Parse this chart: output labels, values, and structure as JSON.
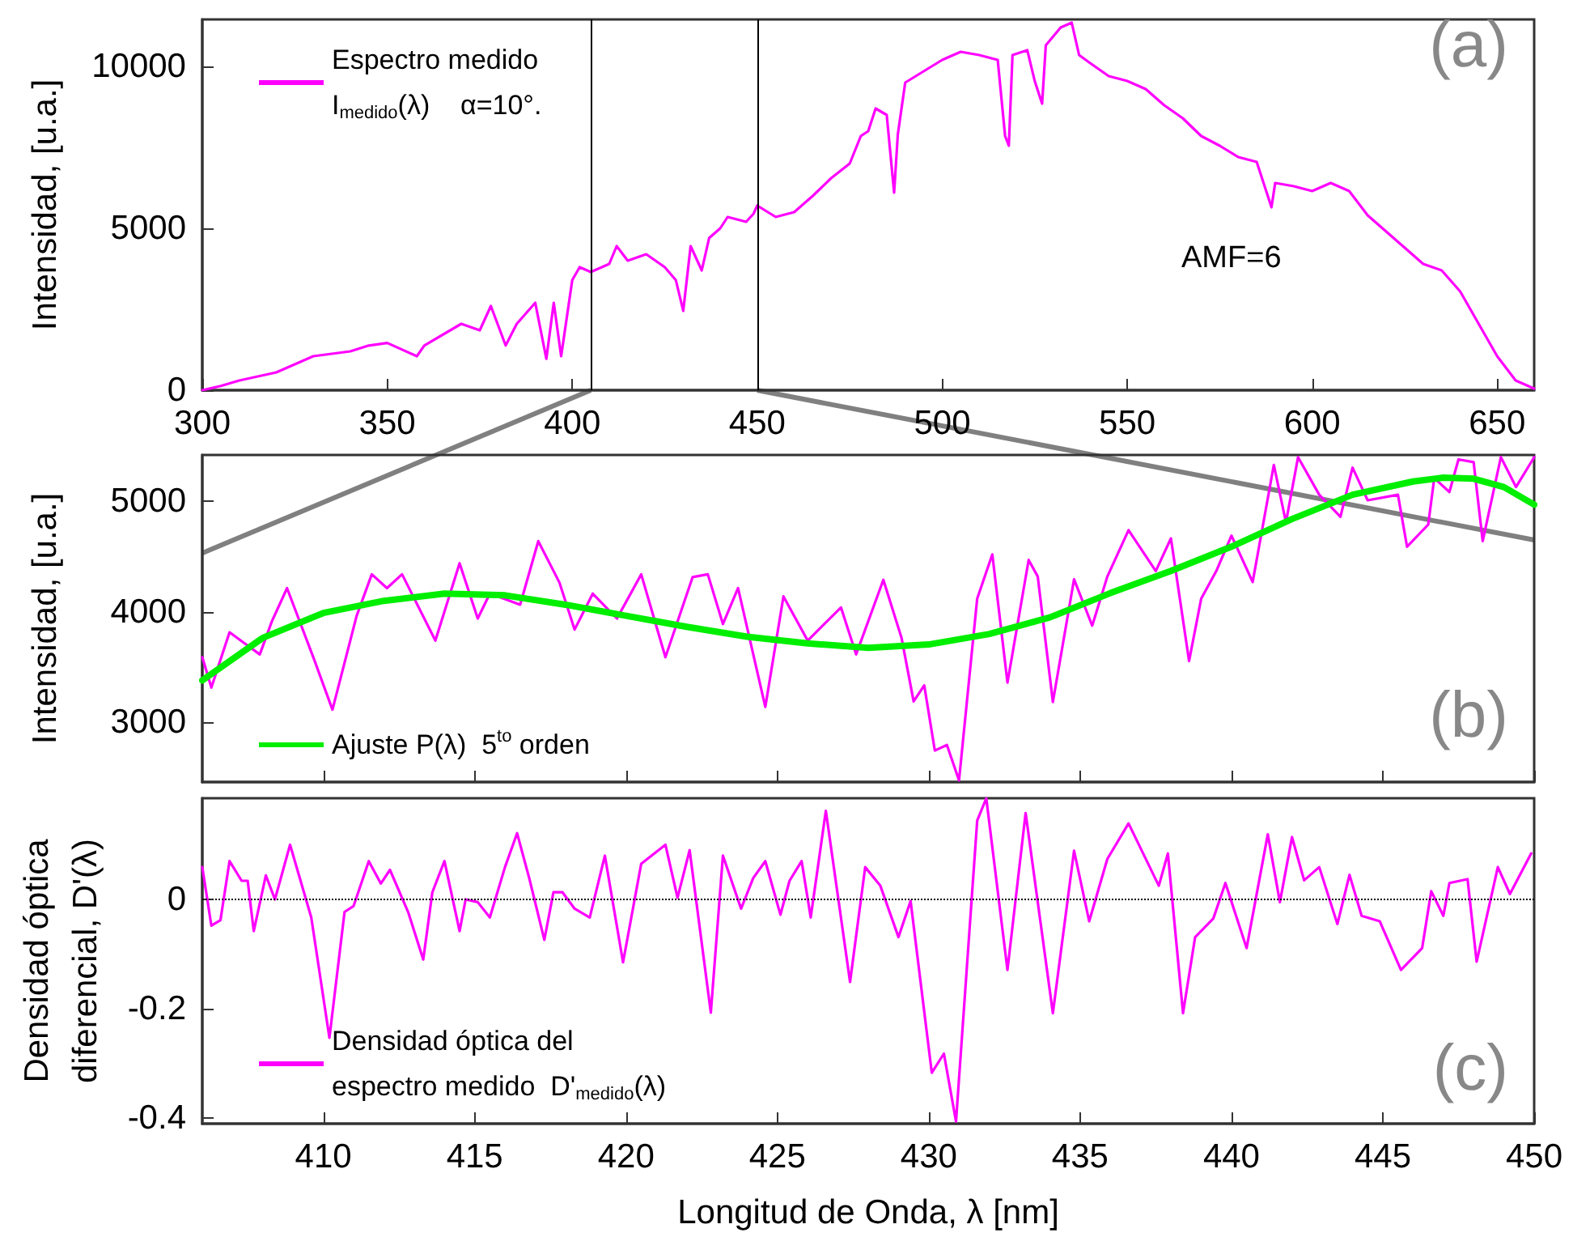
{
  "chart_data": [
    {
      "type": "line",
      "ylabel": "Intensidad, [u.a.]",
      "xlim": [
        300,
        660
      ],
      "xticks": [
        300,
        350,
        400,
        450,
        500,
        550,
        600,
        650
      ],
      "ylim": [
        0,
        11450
      ],
      "yticks": [
        0,
        5000,
        10000
      ],
      "grid": false,
      "legend": "top left",
      "marker": "none",
      "line_style": "solid",
      "annotations": [
        "(a)",
        "AMF=6"
      ],
      "ref_lines": [
        {
          "axis": "x",
          "value": 405,
          "color": "#000000"
        },
        {
          "axis": "x",
          "value": 450,
          "color": "#000000"
        }
      ],
      "series": [
        {
          "name": "Espectro medido\nI$_{medido}$(λ)    α=10°.",
          "color": "#ff00ff",
          "x": [
            300,
            305,
            310,
            320,
            330,
            340,
            345,
            350,
            358,
            360,
            370,
            375,
            378,
            382,
            385,
            390,
            393,
            395,
            397,
            400,
            402,
            405,
            410,
            412,
            415,
            420,
            425,
            428,
            430,
            432,
            435,
            437,
            440,
            442,
            447,
            449,
            450,
            455,
            460,
            465,
            470,
            475,
            478,
            480,
            482,
            485,
            487,
            488,
            490,
            495,
            500,
            505,
            510,
            515,
            517,
            518,
            519,
            523,
            525,
            527,
            528,
            532,
            535,
            537,
            540,
            545,
            550,
            555,
            560,
            565,
            570,
            575,
            580,
            585,
            589,
            590,
            595,
            600,
            605,
            610,
            615,
            620,
            625,
            630,
            635,
            640,
            645,
            650,
            655,
            660
          ],
          "values": [
            0,
            130,
            300,
            550,
            1050,
            1200,
            1380,
            1460,
            1050,
            1380,
            2050,
            1850,
            2600,
            1380,
            2050,
            2700,
            970,
            2700,
            1050,
            3400,
            3800,
            3650,
            3900,
            4450,
            4000,
            4200,
            3800,
            3400,
            2450,
            4450,
            3700,
            4700,
            5000,
            5350,
            5200,
            5450,
            5700,
            5350,
            5500,
            6000,
            6550,
            7000,
            7850,
            8000,
            8700,
            8500,
            6100,
            7900,
            9500,
            9850,
            10200,
            10450,
            10350,
            10200,
            7850,
            7550,
            10350,
            10500,
            9550,
            8850,
            10650,
            11200,
            11350,
            10350,
            10100,
            9700,
            9550,
            9300,
            8800,
            8400,
            7850,
            7550,
            7200,
            7050,
            5650,
            6400,
            6300,
            6150,
            6400,
            6150,
            5400,
            4900,
            4400,
            3900,
            3700,
            3050,
            2050,
            1050,
            300,
            50
          ]
        }
      ]
    },
    {
      "type": "line",
      "ylabel": "Intensidad, [u.a.]",
      "xlim": [
        406,
        450
      ],
      "xticks": [
        410,
        415,
        420,
        425,
        430,
        435,
        440,
        445,
        450
      ],
      "ylim": [
        2460,
        5420
      ],
      "yticks": [
        3000,
        4000,
        5000
      ],
      "tick_labels": "y",
      "grid": false,
      "legend": "bottom left",
      "marker": "none",
      "line_style": "solid",
      "annotations": [
        "(b)"
      ],
      "series": [
        {
          "color": "#ff00ff",
          "x": [
            406.0,
            406.3,
            406.9,
            407.4,
            407.9,
            408.3,
            408.8,
            409.7,
            410.3,
            411.1,
            411.6,
            412.1,
            412.6,
            413.7,
            414.5,
            415.1,
            415.5,
            416.0,
            416.5,
            417.1,
            417.8,
            418.3,
            418.9,
            419.7,
            420.5,
            421.3,
            422.2,
            422.7,
            423.2,
            423.7,
            424.6,
            425.2,
            426.0,
            427.1,
            427.6,
            428.5,
            429.1,
            429.5,
            429.85,
            430.2,
            430.6,
            431.0,
            431.6,
            432.1,
            432.6,
            433.3,
            433.6,
            434.1,
            434.8,
            435.4,
            435.9,
            436.6,
            437.5,
            438.0,
            438.6,
            439.0,
            439.5,
            440.0,
            440.7,
            441.4,
            441.8,
            442.2,
            442.9,
            443.6,
            444.0,
            444.5,
            445.5,
            445.8,
            446.5,
            446.7,
            447.2,
            447.5,
            448.0,
            448.3,
            448.9,
            449.4,
            450.0
          ],
          "values": [
            3590,
            3315,
            3815,
            3715,
            3615,
            3915,
            4215,
            3565,
            3115,
            3965,
            4340,
            4215,
            4340,
            3740,
            4440,
            3940,
            4165,
            4115,
            4065,
            4640,
            4265,
            3840,
            4165,
            3940,
            4340,
            3590,
            4315,
            4340,
            3890,
            4215,
            3140,
            4140,
            3740,
            4040,
            3615,
            4290,
            3765,
            3190,
            3335,
            2745,
            2795,
            2475,
            4120,
            4520,
            3360,
            4470,
            4320,
            3185,
            4295,
            3875,
            4320,
            4740,
            4370,
            4665,
            3555,
            4120,
            4370,
            4690,
            4270,
            5330,
            4810,
            5400,
            5060,
            4860,
            5305,
            5010,
            5060,
            4590,
            4790,
            5210,
            5085,
            5380,
            5355,
            4640,
            5400,
            5130,
            5400
          ]
        },
        {
          "name": "Ajuste P(λ)  5$^{to}$ orden",
          "color": "#00ee00",
          "x": [
            406,
            408,
            410,
            412,
            414,
            416,
            418,
            420,
            422,
            424,
            426,
            428,
            430,
            432,
            434,
            436,
            438,
            440,
            442,
            444,
            446,
            447,
            448,
            449,
            450
          ],
          "values": [
            3380,
            3765,
            3990,
            4100,
            4165,
            4150,
            4065,
            3965,
            3865,
            3775,
            3715,
            3675,
            3705,
            3800,
            3950,
            4170,
            4370,
            4590,
            4840,
            5060,
            5180,
            5215,
            5205,
            5130,
            4970
          ]
        }
      ]
    },
    {
      "type": "line",
      "xlabel": "Longitud de Onda, λ [nm]",
      "ylabel": "Densidad óptica\ndiferencial, D'(λ)",
      "xlim": [
        406,
        450
      ],
      "xticks": [
        410,
        415,
        420,
        425,
        430,
        435,
        440,
        445,
        450
      ],
      "ylim": [
        -0.41,
        0.185
      ],
      "yticks": [
        -0.4,
        -0.2,
        0
      ],
      "grid": false,
      "legend": "bottom left",
      "marker": "none",
      "line_style": "solid",
      "annotations": [
        "(c)"
      ],
      "ref_lines": [
        {
          "axis": "y",
          "value": 0,
          "color": "#000000",
          "line_style": "dotted"
        }
      ],
      "series": [
        {
          "name": "Densidad óptica del\nespectro medido  D'$_{medido}$(λ)",
          "color": "#ff00ff",
          "x": [
            406.0,
            406.3,
            406.6,
            406.9,
            407.3,
            407.5,
            407.7,
            408.1,
            408.4,
            408.9,
            409.6,
            410.2,
            410.7,
            411.0,
            411.5,
            411.9,
            412.2,
            412.8,
            413.3,
            413.6,
            414.0,
            414.5,
            414.7,
            415.1,
            415.5,
            416.0,
            416.4,
            416.8,
            417.3,
            417.6,
            417.9,
            418.3,
            418.8,
            419.3,
            419.9,
            420.5,
            421.3,
            421.7,
            422.1,
            422.8,
            423.2,
            423.8,
            424.2,
            424.6,
            425.1,
            425.4,
            425.8,
            426.1,
            426.6,
            427.4,
            427.9,
            428.4,
            429.0,
            429.4,
            430.1,
            430.5,
            430.9,
            431.6,
            431.9,
            432.6,
            433.2,
            434.1,
            434.8,
            435.3,
            435.9,
            436.6,
            437.6,
            437.9,
            438.4,
            438.8,
            439.4,
            439.8,
            440.5,
            441.2,
            441.6,
            442.0,
            442.4,
            442.9,
            443.5,
            443.9,
            444.3,
            444.9,
            445.6,
            446.3,
            446.6,
            447.0,
            447.2,
            447.8,
            448.1,
            448.8,
            449.2,
            449.9
          ],
          "values": [
            0.059,
            -0.048,
            -0.038,
            0.07,
            0.034,
            0.034,
            -0.058,
            0.044,
            0,
            0.1,
            -0.033,
            -0.253,
            -0.023,
            -0.012,
            0.07,
            0.029,
            0.054,
            -0.023,
            -0.11,
            0.013,
            0.07,
            -0.058,
            0,
            -0.005,
            -0.033,
            0.059,
            0.121,
            0.039,
            -0.074,
            0.013,
            0.013,
            -0.017,
            -0.033,
            0.08,
            -0.115,
            0.065,
            0.1,
            0.003,
            0.09,
            -0.207,
            0.08,
            -0.017,
            0.039,
            0.07,
            -0.028,
            0.034,
            0.07,
            -0.033,
            0.162,
            -0.151,
            0.059,
            0.025,
            -0.069,
            -0.003,
            -0.317,
            -0.282,
            -0.406,
            0.144,
            0.185,
            -0.129,
            0.158,
            -0.208,
            0.089,
            -0.04,
            0.074,
            0.139,
            0.025,
            0.084,
            -0.208,
            -0.069,
            -0.035,
            0.03,
            -0.089,
            0.119,
            -0.005,
            0.114,
            0.035,
            0.059,
            -0.045,
            0.045,
            -0.03,
            -0.04,
            -0.129,
            -0.089,
            0.015,
            -0.03,
            0.03,
            0.037,
            -0.114,
            0.059,
            0.01,
            0.084
          ]
        }
      ]
    }
  ]
}
